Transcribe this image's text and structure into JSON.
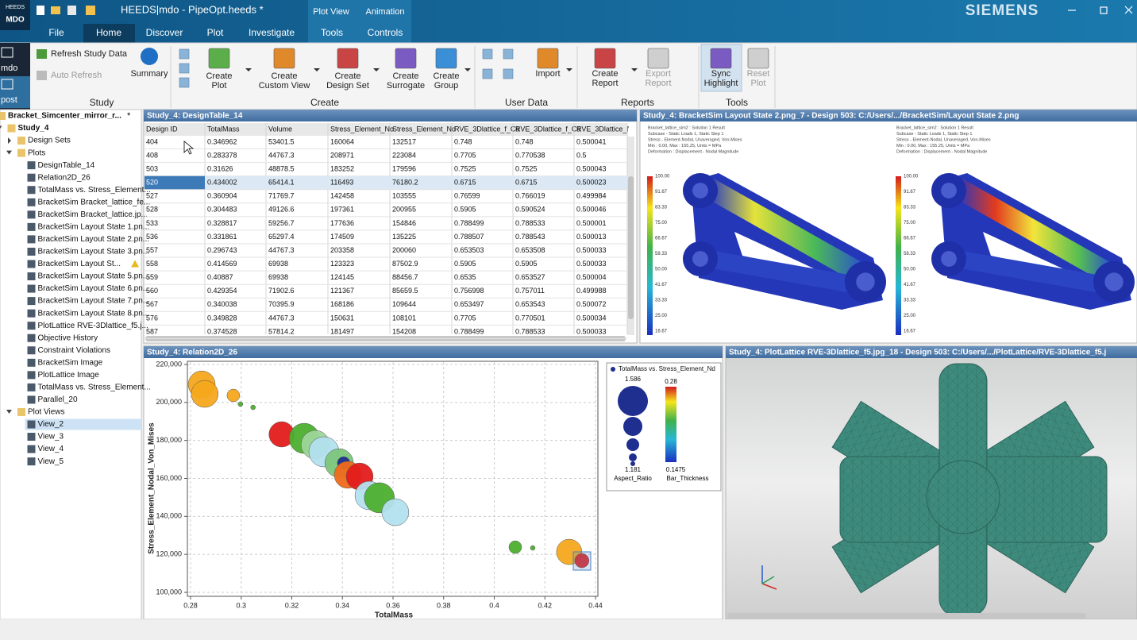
{
  "window": {
    "logo_top": "HEEDS",
    "logo_bottom": "MDO",
    "title": "HEEDS|mdo - PipeOpt.heeds *",
    "context_tabs": [
      "Plot View",
      "Animation"
    ],
    "brand": "SIEMENS"
  },
  "menu": [
    "File",
    "Home",
    "Discover",
    "Plot",
    "Investigate",
    "Tools",
    "Controls"
  ],
  "side_modes": [
    "mdo",
    "post"
  ],
  "ribbon": [
    {
      "label": "Study",
      "buttons": [
        {
          "lines": [
            "Refresh Study Data"
          ]
        },
        {
          "lines": [
            "Auto Refresh"
          ]
        },
        {
          "lines": [
            "Summary"
          ]
        }
      ]
    },
    {
      "label": "Create",
      "buttons": [
        {
          "lines": [
            "Create",
            "Plot"
          ]
        },
        {
          "lines": [
            "Create",
            "Custom View"
          ]
        },
        {
          "lines": [
            "Create",
            "Design Set"
          ]
        },
        {
          "lines": [
            "Create",
            "Surrogate"
          ]
        },
        {
          "lines": [
            "Create",
            "Group"
          ]
        }
      ]
    },
    {
      "label": "User Data",
      "buttons": [
        {
          "lines": [
            "Import"
          ]
        }
      ]
    },
    {
      "label": "Reports",
      "buttons": [
        {
          "lines": [
            "Create",
            "Report"
          ]
        },
        {
          "lines": [
            "Export",
            "Report"
          ]
        }
      ]
    },
    {
      "label": "Tools",
      "buttons": [
        {
          "lines": [
            "Sync",
            "Highlight"
          ]
        },
        {
          "lines": [
            "Reset",
            "Plot"
          ]
        }
      ]
    }
  ],
  "tree": {
    "label": "Bracket_Simcenter_mirror_r...",
    "flag": "*",
    "children": [
      {
        "label": "Study_4",
        "children": [
          {
            "label": "Design Sets",
            "collapsed": true
          },
          {
            "label": "Plots",
            "children": [
              {
                "label": "DesignTable_14"
              },
              {
                "label": "Relation2D_26"
              },
              {
                "label": "TotalMass vs. Stress_Element..."
              },
              {
                "label": "BracketSim Bracket_lattice_fe..."
              },
              {
                "label": "BracketSim Bracket_lattice.jp..."
              },
              {
                "label": "BracketSim Layout State 1.pn..."
              },
              {
                "label": "BracketSim Layout State 2.pn..."
              },
              {
                "label": "BracketSim Layout State 3.pn..."
              },
              {
                "label": "BracketSim Layout St...",
                "warning": true
              },
              {
                "label": "BracketSim Layout State 5.pn..."
              },
              {
                "label": "BracketSim Layout State 6.pn..."
              },
              {
                "label": "BracketSim Layout State 7.pn..."
              },
              {
                "label": "BracketSim Layout State 8.pn..."
              },
              {
                "label": "PlotLattice RVE-3Dlattice_f5.j..."
              },
              {
                "label": "Objective History"
              },
              {
                "label": "Constraint Violations"
              },
              {
                "label": "BracketSim Image"
              },
              {
                "label": "PlotLattice Image"
              },
              {
                "label": "TotalMass vs. Stress_Element..."
              },
              {
                "label": "Parallel_20"
              }
            ]
          },
          {
            "label": "Plot Views",
            "children": [
              {
                "label": "View_2",
                "selected": true
              },
              {
                "label": "View_3"
              },
              {
                "label": "View_4"
              },
              {
                "label": "View_5"
              }
            ]
          }
        ]
      }
    ]
  },
  "table": {
    "title": "Study_4: DesignTable_14",
    "columns": [
      "Design ID",
      "TotalMass",
      "Volume",
      "Stress_Element_No",
      "Stress_Element_Nd",
      "RVE_3Dlattice_f_Ca",
      "RVE_3Dlattice_f_Ca",
      "RVE_3Dlattice_f"
    ],
    "selected_row": 3,
    "rows": [
      [
        "404",
        "0.346962",
        "53401.5",
        "160064",
        "132517",
        "0.748",
        "0.748",
        "0.500041"
      ],
      [
        "408",
        "0.283378",
        "44767.3",
        "208971",
        "223084",
        "0.7705",
        "0.770538",
        "0.5"
      ],
      [
        "503",
        "0.31626",
        "48878.5",
        "183252",
        "179596",
        "0.7525",
        "0.7525",
        "0.500043"
      ],
      [
        "520",
        "0.434002",
        "65414.1",
        "116493",
        "76180.2",
        "0.6715",
        "0.6715",
        "0.500023"
      ],
      [
        "527",
        "0.360904",
        "71769.7",
        "142458",
        "103555",
        "0.76599",
        "0.766019",
        "0.499984"
      ],
      [
        "528",
        "0.304483",
        "49126.6",
        "197361",
        "200955",
        "0.5905",
        "0.590524",
        "0.500046"
      ],
      [
        "533",
        "0.328817",
        "59256.7",
        "177636",
        "154846",
        "0.788499",
        "0.788533",
        "0.500001"
      ],
      [
        "536",
        "0.331861",
        "65297.4",
        "174509",
        "135225",
        "0.788507",
        "0.788543",
        "0.500013"
      ],
      [
        "557",
        "0.296743",
        "44767.3",
        "203358",
        "200060",
        "0.653503",
        "0.653508",
        "0.500033"
      ],
      [
        "558",
        "0.414569",
        "69938",
        "123323",
        "87502.9",
        "0.5905",
        "0.5905",
        "0.500033"
      ],
      [
        "559",
        "0.40887",
        "69938",
        "124145",
        "88456.7",
        "0.6535",
        "0.653527",
        "0.500004"
      ],
      [
        "560",
        "0.429354",
        "71902.6",
        "121367",
        "85659.5",
        "0.756998",
        "0.757011",
        "0.499988"
      ],
      [
        "567",
        "0.340038",
        "70395.9",
        "168186",
        "109644",
        "0.653497",
        "0.653543",
        "0.500072"
      ],
      [
        "576",
        "0.349828",
        "44767.3",
        "150631",
        "108101",
        "0.7705",
        "0.770501",
        "0.500034"
      ],
      [
        "587",
        "0.374528",
        "57814.2",
        "181497",
        "154208",
        "0.788499",
        "0.788533",
        "0.500033"
      ]
    ]
  },
  "image_panel": {
    "title": "Study_4: BracketSim Layout State 2.png_7 - Design 503: C:/Users/.../BracketSim/Layout State 2.png",
    "header_lines": [
      "Bracket_lattice_sim2 : Solution 1 Result",
      "Subcase - Static Loads 1, Static Step 1",
      "Stress - Element-Nodal, Unaveraged, Von-Mises",
      "Min : 0.00, Max : 155.25, Units = MPa",
      "Deformation : Displacement - Nodal Magnitude"
    ],
    "contour_labels": [
      "100.00",
      "91.67",
      "83.33",
      "75.00",
      "66.67",
      "58.33",
      "50.00",
      "41.67",
      "33.33",
      "25.00",
      "16.67"
    ]
  },
  "lattice_panel": {
    "title": "Study_4: PlotLattice RVE-3Dlattice_f5.jpg_18 - Design 503: C:/Users/.../PlotLattice/RVE-3Dlattice_f5.j"
  },
  "chart_data": {
    "type": "scatter",
    "title": "Study_4: Relation2D_26",
    "x_label": "TotalMass",
    "y_label": "Stress_Element_Nodal_Von_Mises",
    "x": [
      0.2844,
      0.2856,
      0.2969,
      0.2997,
      0.3047,
      0.316,
      0.3249,
      0.3293,
      0.3327,
      0.3387,
      0.3405,
      0.3421,
      0.3468,
      0.3506,
      0.3546,
      0.3609,
      0.4083,
      0.4152,
      0.4296,
      0.4346
    ],
    "series": [
      {
        "name": "TotalMass vs. Stress_Element_Nd",
        "values": [
          209500,
          204500,
          203700,
          199100,
          197400,
          183200,
          181100,
          177800,
          174000,
          168100,
          168100,
          161900,
          161000,
          151000,
          149800,
          142200,
          123800,
          123400,
          121300,
          116700
        ],
        "sizes": [
          1.535,
          1.535,
          1.308,
          1.181,
          1.181,
          1.51,
          1.586,
          1.56,
          1.586,
          1.56,
          1.308,
          1.535,
          1.535,
          1.56,
          1.586,
          1.535,
          1.308,
          1.181,
          1.51,
          1.333
        ],
        "colors": [
          "#f5a81c",
          "#f5a81c",
          "#f5a81c",
          "#4caf2f",
          "#4caf2f",
          "#e31b1b",
          "#4caf2f",
          "#9ed69a",
          "#b3e0ee",
          "#7cc67a",
          "#1e2f8f",
          "#ef6a1a",
          "#e31b1b",
          "#b3e0ee",
          "#4caf2f",
          "#b3e0ee",
          "#4caf2f",
          "#4caf2f",
          "#f5a81c",
          "#e31b1b"
        ]
      }
    ],
    "xlim": [
      0.28,
      0.44
    ],
    "xticks": [
      0.28,
      0.3,
      0.32,
      0.34,
      0.36,
      0.38,
      0.4,
      0.42,
      0.44
    ],
    "ylim": [
      100000,
      220000
    ],
    "yticks": [
      {
        "value": 100000,
        "label": "100,000"
      },
      {
        "value": 120000,
        "label": "120,000"
      },
      {
        "value": 140000,
        "label": "140,000"
      },
      {
        "value": 160000,
        "label": "160,000"
      },
      {
        "value": 180000,
        "label": "180,000"
      },
      {
        "value": 200000,
        "label": "200,000"
      },
      {
        "value": 220000,
        "label": "220,000"
      }
    ],
    "grid": true,
    "size_name": "Aspect_Ratio",
    "size_legend": [
      1.586,
      1.181
    ],
    "color_name": "Bar_Thickness",
    "color_legend": [
      0.28,
      0.1475
    ]
  }
}
